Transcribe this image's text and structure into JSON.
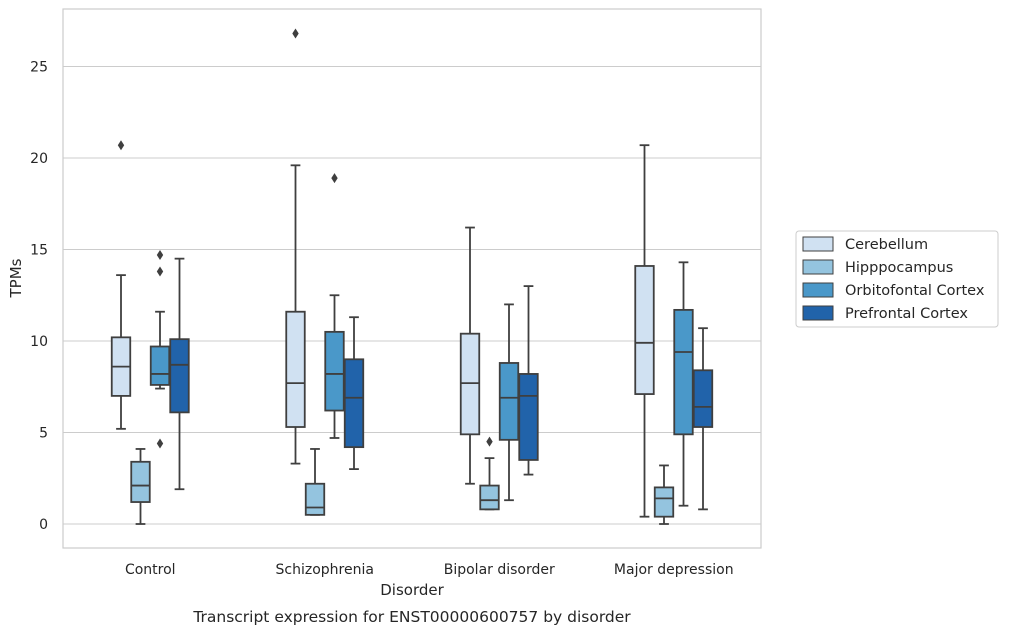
{
  "chart_data": {
    "type": "box",
    "xlabel": "Disorder",
    "ylabel": "TPMs",
    "caption": "Transcript expression for ENST00000600757 by disorder",
    "ylim": [
      -1.2,
      28.2
    ],
    "yticks": [
      0,
      5,
      10,
      15,
      20,
      25
    ],
    "grid": "horizontal",
    "legend_position": "right",
    "categories": [
      "Control",
      "Schizophrenia",
      "Bipolar disorder",
      "Major depression"
    ],
    "series": [
      {
        "name": "Cerebellum",
        "color": "#d0e1f2",
        "boxes": [
          {
            "whislo": 5.2,
            "q1": 7.0,
            "med": 8.6,
            "q3": 10.2,
            "whishi": 13.6,
            "fliers": [
              20.7
            ]
          },
          {
            "whislo": 3.3,
            "q1": 5.3,
            "med": 7.7,
            "q3": 11.6,
            "whishi": 19.6,
            "fliers": [
              26.8
            ]
          },
          {
            "whislo": 2.2,
            "q1": 4.9,
            "med": 7.7,
            "q3": 10.4,
            "whishi": 16.2,
            "fliers": []
          },
          {
            "whislo": 0.4,
            "q1": 7.1,
            "med": 9.9,
            "q3": 14.1,
            "whishi": 20.7,
            "fliers": []
          }
        ]
      },
      {
        "name": "Hipppocampus",
        "color": "#94c4df",
        "boxes": [
          {
            "whislo": 0.0,
            "q1": 1.2,
            "med": 2.1,
            "q3": 3.4,
            "whishi": 4.1,
            "fliers": []
          },
          {
            "whislo": 0.5,
            "q1": 0.5,
            "med": 0.9,
            "q3": 2.2,
            "whishi": 4.1,
            "fliers": []
          },
          {
            "whislo": 0.8,
            "q1": 0.8,
            "med": 1.3,
            "q3": 2.1,
            "whishi": 3.6,
            "fliers": [
              4.5
            ]
          },
          {
            "whislo": 0.0,
            "q1": 0.4,
            "med": 1.4,
            "q3": 2.0,
            "whishi": 3.2,
            "fliers": []
          }
        ]
      },
      {
        "name": "Orbitofontal Cortex",
        "color": "#4a98c9",
        "boxes": [
          {
            "whislo": 7.4,
            "q1": 7.6,
            "med": 8.2,
            "q3": 9.7,
            "whishi": 11.6,
            "fliers": [
              4.4,
              13.8,
              14.7
            ]
          },
          {
            "whislo": 4.7,
            "q1": 6.2,
            "med": 8.2,
            "q3": 10.5,
            "whishi": 12.5,
            "fliers": [
              18.9
            ]
          },
          {
            "whislo": 1.3,
            "q1": 4.6,
            "med": 6.9,
            "q3": 8.8,
            "whishi": 12.0,
            "fliers": []
          },
          {
            "whislo": 1.0,
            "q1": 4.9,
            "med": 9.4,
            "q3": 11.7,
            "whishi": 14.3,
            "fliers": []
          }
        ]
      },
      {
        "name": "Prefrontal Cortex",
        "color": "#2163aa",
        "boxes": [
          {
            "whislo": 1.9,
            "q1": 6.1,
            "med": 8.7,
            "q3": 10.1,
            "whishi": 14.5,
            "fliers": []
          },
          {
            "whislo": 3.0,
            "q1": 4.2,
            "med": 6.9,
            "q3": 9.0,
            "whishi": 11.3,
            "fliers": []
          },
          {
            "whislo": 2.7,
            "q1": 3.5,
            "med": 7.0,
            "q3": 8.2,
            "whishi": 13.0,
            "fliers": []
          },
          {
            "whislo": 0.8,
            "q1": 5.3,
            "med": 6.4,
            "q3": 8.4,
            "whishi": 10.7,
            "fliers": []
          }
        ]
      }
    ]
  }
}
